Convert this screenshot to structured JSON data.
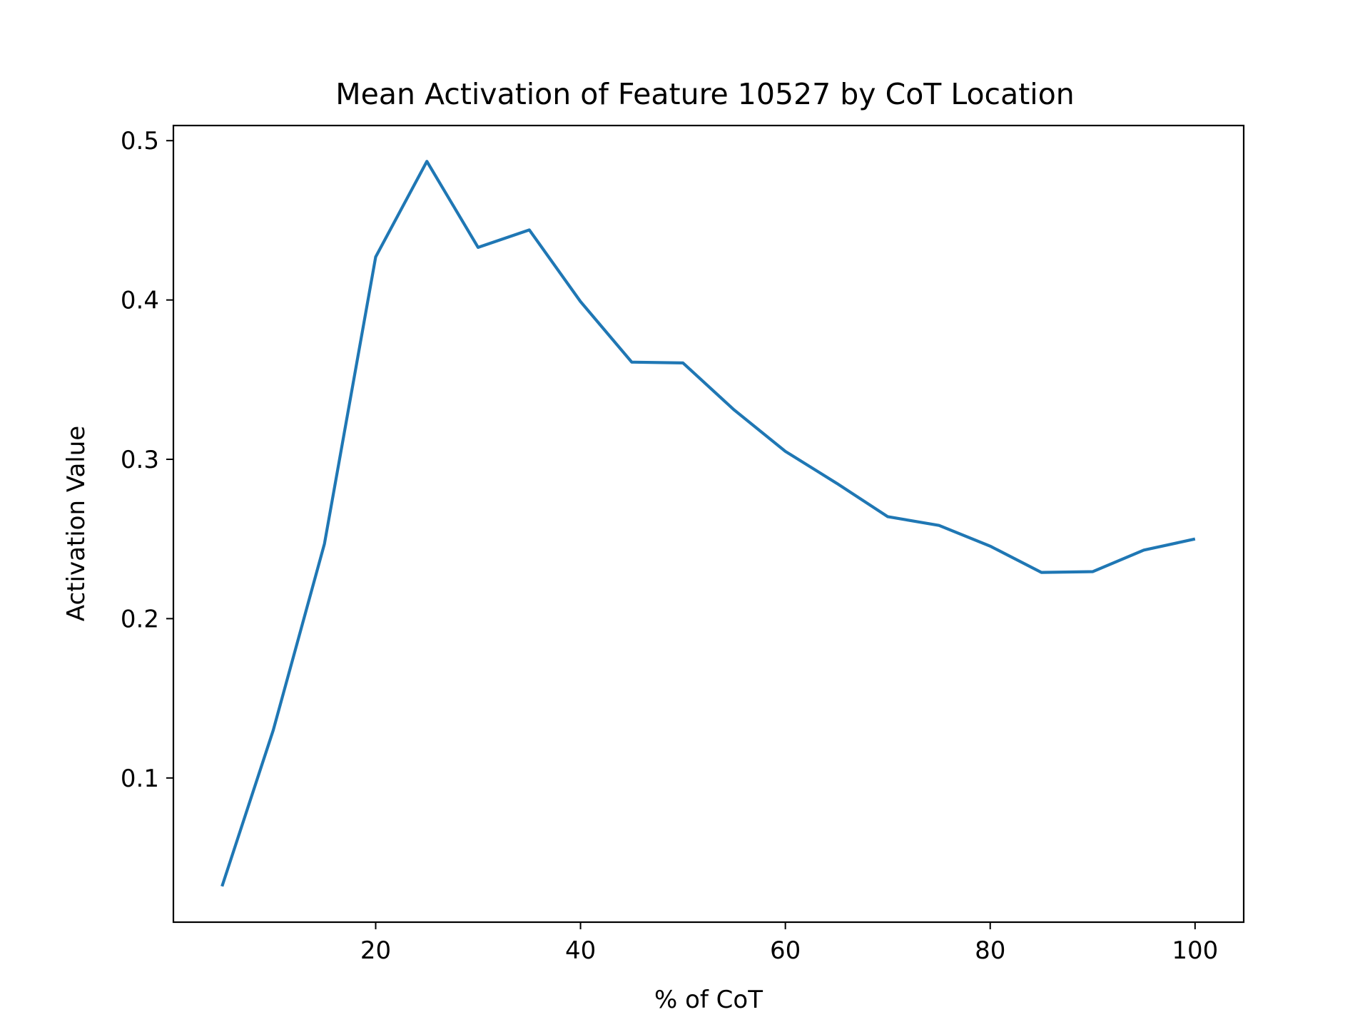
{
  "chart_data": {
    "type": "line",
    "title": "Mean Activation of Feature 10527 by CoT Location",
    "xlabel": "% of CoT",
    "ylabel": "Activation Value",
    "xlim": [
      0.25,
      104.75
    ],
    "ylim": [
      0.0095,
      0.5095
    ],
    "xticks": [
      20,
      40,
      60,
      80,
      100
    ],
    "xtick_labels": [
      "20",
      "40",
      "60",
      "80",
      "100"
    ],
    "yticks": [
      0.1,
      0.2,
      0.3,
      0.4,
      0.5
    ],
    "ytick_labels": [
      "0.1",
      "0.2",
      "0.3",
      "0.4",
      "0.5"
    ],
    "grid": false,
    "legend": "none",
    "series": [
      {
        "color": "#1f77b4",
        "x": [
          5,
          10,
          15,
          20,
          25,
          30,
          35,
          40,
          45,
          50,
          55,
          60,
          65,
          70,
          75,
          80,
          85,
          90,
          95,
          100
        ],
        "y": [
          0.032,
          0.13,
          0.247,
          0.427,
          0.487,
          0.433,
          0.444,
          0.399,
          0.361,
          0.3605,
          0.331,
          0.305,
          0.285,
          0.264,
          0.2585,
          0.2455,
          0.229,
          0.2295,
          0.243,
          0.25
        ]
      }
    ]
  }
}
